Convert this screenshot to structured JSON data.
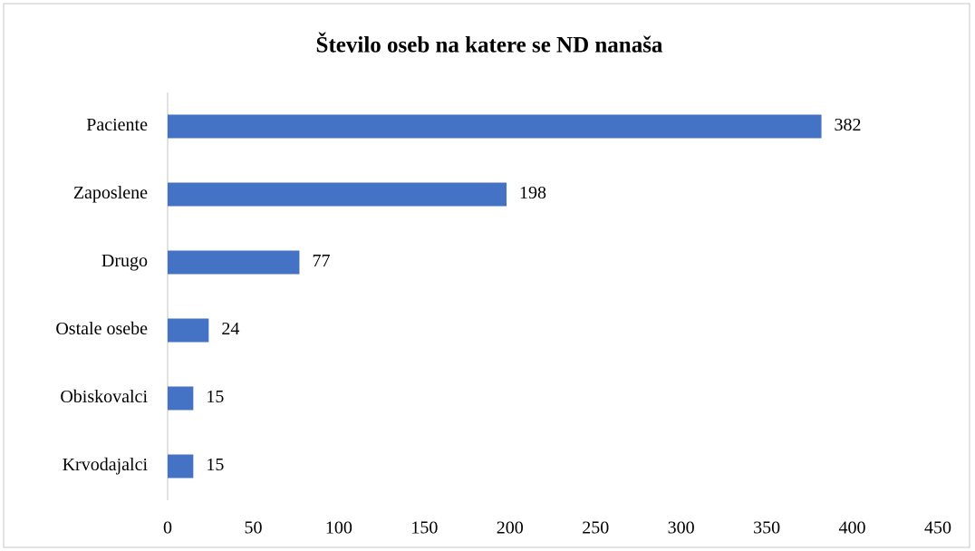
{
  "chart_data": {
    "type": "bar",
    "orientation": "horizontal",
    "title": "Število oseb na katere se ND nanaša",
    "categories": [
      "Paciente",
      "Zaposlene",
      "Drugo",
      "Ostale osebe",
      "Obiskovalci",
      "Krvodajalci"
    ],
    "values": [
      382,
      198,
      77,
      24,
      15,
      15
    ],
    "color": "#4472c4",
    "xlim": [
      0,
      450
    ],
    "xticks": [
      0,
      50,
      100,
      150,
      200,
      250,
      300,
      350,
      400,
      450
    ],
    "grid": false,
    "data_labels": true
  }
}
